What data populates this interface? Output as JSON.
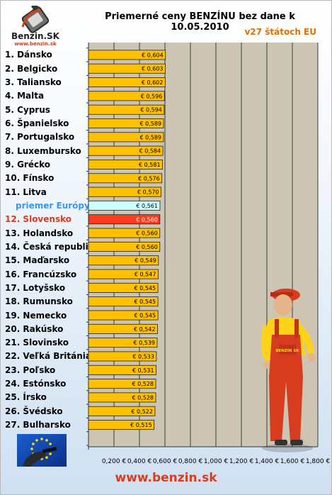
{
  "logo": {
    "brand": "Benzin.SK",
    "url": "www.benzin.sk"
  },
  "chart_data": {
    "type": "bar",
    "orientation": "horizontal",
    "title": "Priemerné ceny BENZÍNU bez dane k 10.05.2010",
    "subtitle": "v27 štátoch EU",
    "categories": [
      "1. Dánsko",
      "2. Belgicko",
      "3. Taliansko",
      "4. Malta",
      "5. Cyprus",
      "6. Španielsko",
      "7. Portugalsko",
      "8. Luxembursko",
      "9. Grécko",
      "10. Fínsko",
      "11. Litva",
      "priemer Európy",
      "12. Slovensko",
      "13. Holandsko",
      "14. Česká republika",
      "15. Maďarsko",
      "16. Francúzsko",
      "17. Lotyšsko",
      "18. Rumunsko",
      "19. Nemecko",
      "20. Rakúsko",
      "21. Slovinsko",
      "22. Veľká Británia",
      "23. Poľsko",
      "24. Estónsko",
      "25. Írsko",
      "26. Švédsko",
      "27. Bulharsko"
    ],
    "values": [
      0.604,
      0.603,
      0.602,
      0.596,
      0.594,
      0.589,
      0.589,
      0.584,
      0.581,
      0.576,
      0.57,
      0.561,
      0.56,
      0.56,
      0.56,
      0.549,
      0.547,
      0.545,
      0.545,
      0.545,
      0.542,
      0.539,
      0.533,
      0.531,
      0.528,
      0.528,
      0.522,
      0.515
    ],
    "value_labels": [
      "€ 0,604",
      "€ 0,603",
      "€ 0,602",
      "€ 0,596",
      "€ 0,594",
      "€ 0,589",
      "€ 0,589",
      "€ 0,584",
      "€ 0,581",
      "€ 0,576",
      "€ 0,570",
      "€ 0,561",
      "€ 0,560",
      "€ 0,560",
      "€ 0,560",
      "€ 0,549",
      "€ 0,547",
      "€ 0,545",
      "€ 0,545",
      "€ 0,545",
      "€ 0,542",
      "€ 0,539",
      "€ 0,533",
      "€ 0,531",
      "€ 0,528",
      "€ 0,528",
      "€ 0,522",
      "€ 0,515"
    ],
    "xlim": [
      0,
      1.8
    ],
    "x_ticks": [
      0,
      0.2,
      0.4,
      0.6,
      0.8,
      1.0,
      1.2,
      1.4,
      1.6,
      1.8
    ],
    "x_tick_labels": [
      "0,200 €",
      "0,400 €",
      "0,600 €",
      "0,800 €",
      "1,000 €",
      "1,200 €",
      "1,400 €",
      "1,600 €",
      "1,800 €"
    ],
    "grid": true,
    "colors": {
      "bar": "#ffc000",
      "average_bar": "#ccffff",
      "slovakia_bar": "#ff3b1f",
      "plot_background": "#ccc5b3",
      "average_label": "#3399ff",
      "slovakia_label": "#d83c1e"
    }
  },
  "mascot": {
    "shirt_text": "BENZIN SK"
  },
  "footer": {
    "url": "www.benzin.sk"
  }
}
